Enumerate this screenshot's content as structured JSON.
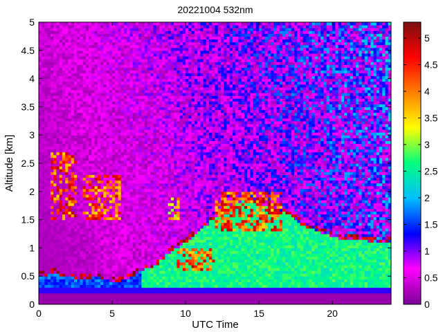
{
  "chart_data": {
    "type": "heatmap",
    "title": "20221004 532nm",
    "xlabel": "UTC Time",
    "ylabel": "Altitude [km]",
    "xlim": [
      0,
      24
    ],
    "ylim": [
      0,
      5
    ],
    "x_ticks": [
      0,
      5,
      10,
      15,
      20
    ],
    "y_ticks": [
      0,
      0.5,
      1,
      1.5,
      2,
      2.5,
      3,
      3.5,
      4,
      4.5,
      5
    ],
    "colorbar": {
      "range": [
        0,
        5.3
      ],
      "ticks": [
        0,
        0.5,
        1,
        1.5,
        2,
        2.5,
        3,
        3.5,
        4,
        4.5,
        5
      ],
      "colormap": [
        "#7a0096",
        "#ff00ff",
        "#0000ff",
        "#00bfff",
        "#00ff80",
        "#ffff00",
        "#ff8000",
        "#ff0000",
        "#7a1010"
      ]
    },
    "features": {
      "background_value": 0.2,
      "surface_layer": {
        "altitude_km": [
          0.2,
          0.3
        ],
        "value": 1.2
      },
      "boundary_layer_top_km": [
        [
          0,
          0.5
        ],
        [
          1,
          0.55
        ],
        [
          2,
          0.5
        ],
        [
          3,
          0.45
        ],
        [
          4,
          0.5
        ],
        [
          5,
          0.4
        ],
        [
          6,
          0.45
        ],
        [
          7,
          0.6
        ],
        [
          8,
          0.7
        ],
        [
          9,
          0.95
        ],
        [
          10,
          1.1
        ],
        [
          11,
          1.3
        ],
        [
          12,
          1.55
        ],
        [
          13,
          1.75
        ],
        [
          14,
          1.85
        ],
        [
          15,
          1.8
        ],
        [
          16,
          1.7
        ],
        [
          17,
          1.6
        ],
        [
          18,
          1.4
        ],
        [
          19,
          1.3
        ],
        [
          20,
          1.2
        ],
        [
          21,
          1.15
        ],
        [
          22,
          1.15
        ],
        [
          23,
          1.1
        ],
        [
          24,
          1.1
        ]
      ],
      "cloud_layers": [
        {
          "x_range": [
            0.8,
            2.6
          ],
          "altitude_km": [
            1.5,
            2.7
          ],
          "value": 5
        },
        {
          "x_range": [
            3.0,
            5.5
          ],
          "altitude_km": [
            1.5,
            2.3
          ],
          "value": 5
        },
        {
          "x_range": [
            8.8,
            9.6
          ],
          "altitude_km": [
            1.5,
            1.9
          ],
          "value": 4.5
        },
        {
          "x_range": [
            9.5,
            12
          ],
          "altitude_km": [
            0.6,
            1.0
          ],
          "value": 5
        },
        {
          "x_range": [
            12,
            16.5
          ],
          "altitude_km": [
            1.3,
            2.0
          ],
          "value": 5
        }
      ]
    }
  }
}
